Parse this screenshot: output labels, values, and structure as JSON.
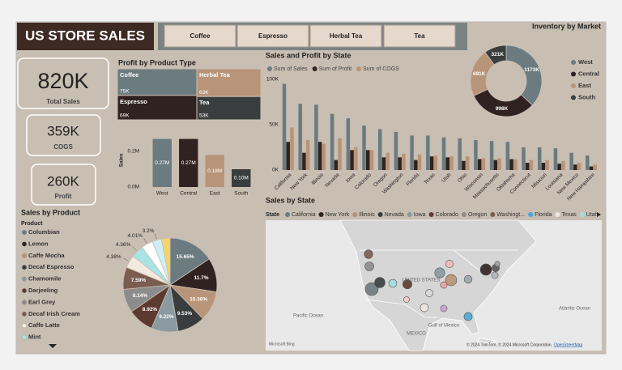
{
  "header": {
    "title": "US STORE SALES"
  },
  "slicer": {
    "items": [
      "Coffee",
      "Espresso",
      "Herbal Tea",
      "Tea"
    ]
  },
  "kpis": [
    {
      "value": "820K",
      "label": "Total Sales"
    },
    {
      "value": "359K",
      "label": "COGS"
    },
    {
      "value": "260K",
      "label": "Profit"
    }
  ],
  "chart_data": [
    {
      "type": "treemap",
      "title": "Profit by Product Type",
      "categories": [
        "Coffee",
        "Herbal Tea",
        "Espresso",
        "Tea"
      ],
      "values": [
        75,
        63,
        69,
        53
      ],
      "value_labels": [
        "75K",
        "63K",
        "69K",
        "53K"
      ],
      "colors": [
        "#6b7b80",
        "#b89478",
        "#2f2220",
        "#3a3d3e"
      ]
    },
    {
      "type": "bar",
      "ylabel": "Sales",
      "categories": [
        "West",
        "Central",
        "East",
        "South"
      ],
      "values": [
        270000,
        270000,
        180000,
        100000
      ],
      "value_labels": [
        "0.27M",
        "0.27M",
        "0.18M",
        "0.10M"
      ],
      "colors": [
        "#6b7b80",
        "#2f2220",
        "#b89478",
        "#3a3d3e"
      ],
      "ylim": [
        0,
        300000
      ],
      "yticks": [
        {
          "value": 0,
          "label": "0.0M"
        },
        {
          "value": 200000,
          "label": "0.2M"
        }
      ],
      "grid": false
    },
    {
      "type": "grouped_bar",
      "title": "Sales and Profit by State",
      "categories": [
        "California",
        "New York",
        "Illinois",
        "Nevada",
        "Iowa",
        "Colorado",
        "Oregon",
        "Washington",
        "Florida",
        "Texas",
        "Utah",
        "Ohio",
        "Wisconsin",
        "Massachusetts",
        "Oklahoma",
        "Connecticut",
        "Missouri",
        "Louisiana",
        "New Mexico",
        "New Hampshire"
      ],
      "series": [
        {
          "name": "Sum of Sales",
          "color": "#6b7b80",
          "values": [
            95000,
            73000,
            72000,
            62000,
            57000,
            49000,
            45000,
            42000,
            38000,
            38000,
            36000,
            35000,
            33000,
            32000,
            31000,
            25000,
            25000,
            24000,
            19000,
            16000
          ]
        },
        {
          "name": "Sum of Profit",
          "color": "#2f2220",
          "values": [
            31000,
            19000,
            31000,
            11000,
            22000,
            22000,
            14000,
            14000,
            11000,
            15000,
            14000,
            10000,
            12000,
            11000,
            12000,
            8000,
            8000,
            7000,
            6000,
            4000
          ]
        },
        {
          "name": "Sum of COGS",
          "color": "#b89478",
          "values": [
            47000,
            33000,
            29000,
            35000,
            25000,
            22000,
            19000,
            18000,
            17000,
            16000,
            15000,
            15000,
            13000,
            13000,
            12000,
            11000,
            11000,
            10000,
            8000,
            6000
          ]
        }
      ],
      "ylim": [
        0,
        100000
      ],
      "yticks": [
        {
          "value": 0,
          "label": "0K"
        },
        {
          "value": 50000,
          "label": "50K"
        },
        {
          "value": 100000,
          "label": "100K"
        }
      ],
      "legend": "top-left"
    },
    {
      "type": "donut",
      "title": "Inventory by Market",
      "categories": [
        "West",
        "Central",
        "East",
        "South"
      ],
      "values": [
        1173,
        998,
        691,
        321
      ],
      "value_labels": [
        "1173K",
        "998K",
        "691K",
        "321K"
      ],
      "colors": [
        "#6b7b80",
        "#2f2220",
        "#b89478",
        "#3a3d3e"
      ],
      "legend": "right"
    },
    {
      "type": "pie",
      "title": "Sales by Product",
      "legend_title": "Product",
      "categories": [
        "Columbian",
        "Lemon",
        "Caffe Mocha",
        "Decaf Espresso",
        "Chamomile",
        "Darjeeling",
        "Earl Grey",
        "Decaf Irish Cream",
        "Caffe Latte",
        "Mint",
        null,
        null,
        null
      ],
      "values": [
        15.65,
        11.7,
        10.36,
        9.53,
        9.22,
        8.92,
        8.14,
        7.59,
        4.38,
        4.36,
        4.01,
        3.2,
        2.94
      ],
      "value_labels": [
        "15.65%",
        "11.7%",
        "10.36%",
        "9.53%",
        "9.22%",
        "8.92%",
        "8.14%",
        "7.59%",
        "4.38%",
        "4.36%",
        "4.01%",
        "3.2%",
        null
      ],
      "colors": [
        "#6b7b80",
        "#2f2220",
        "#b89478",
        "#3a3d3e",
        "#8a9aa0",
        "#5c3a30",
        "#8c8c8c",
        "#7a5c50",
        "#f3e9de",
        "#a8e4e4",
        "#ffffff",
        "#cdeff3",
        "#f5d36a"
      ],
      "legend": "left"
    },
    {
      "type": "map",
      "title": "Sales by State",
      "legend_title": "State",
      "legend_items": [
        "California",
        "New York",
        "Illinois",
        "Nevada",
        "Iowa",
        "Colorado",
        "Oregon",
        "Washingt...",
        "Florida",
        "Texas",
        "Utah"
      ],
      "bubble_colors": [
        "#6b7b80",
        "#2f2220",
        "#b89478",
        "#3a3d3e",
        "#8a9aa0",
        "#5c3a30",
        "#8c8c8c",
        "#7a5c50",
        "#4aa8d8",
        "#f0e6dc",
        "#a0e0e0",
        "#9aa5a8",
        "#f2b8b8",
        "#55585a",
        "#d8d8d8",
        "#b0b8bb",
        "#e8a0a0",
        "#c8a0d0",
        "#f8c8c8",
        "#a0a0a0"
      ],
      "labels": [
        "Pacific Ocean",
        "Atlantic Ocean",
        "Gulf of Mexico",
        "MEXICO",
        "UNITED STATES"
      ],
      "provider": "Microsoft Bing",
      "attribution": "© 2024 TomTom, © 2024 Microsoft Corporation,",
      "attribution_link": "OpenStreetMap"
    }
  ]
}
